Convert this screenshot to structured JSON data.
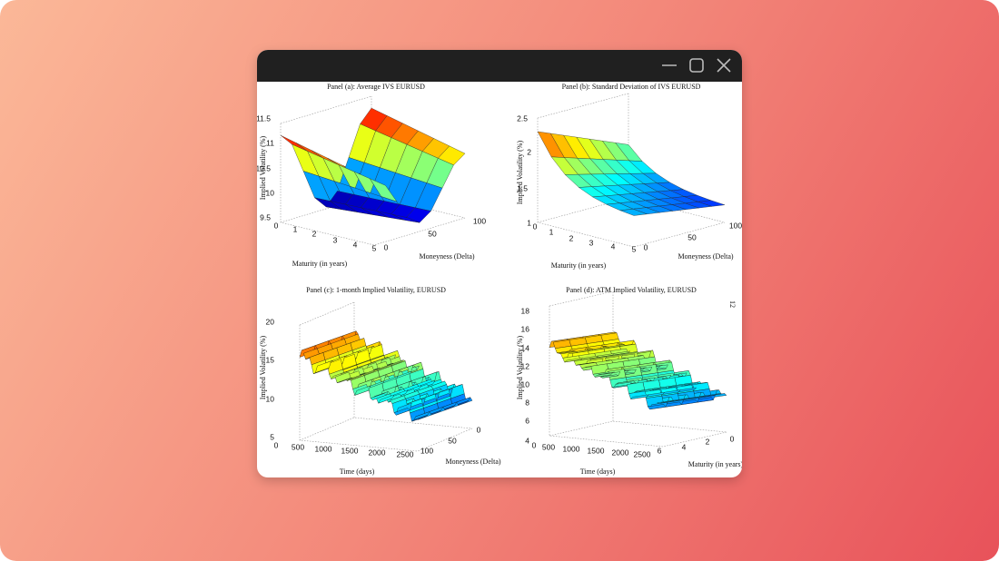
{
  "window": {
    "page_number": 12
  },
  "panels": [
    {
      "title": "Panel (a): Average IVS EURUSD",
      "z_label": "Implied Volatility (%)",
      "x_label": "Maturity (in years)",
      "y_label": "Moneyness (Delta)",
      "z_ticks": [
        11.5,
        11,
        10.5,
        10,
        9.5
      ],
      "x_ticks": [
        0,
        1,
        2,
        3,
        4,
        5
      ],
      "y_ticks": [
        0,
        50,
        100
      ]
    },
    {
      "title": "Panel (b): Standard Deviation of IVS EURUSD",
      "z_label": "Implied Volatility (%)",
      "x_label": "Maturity (in years)",
      "y_label": "Moneyness (Delta)",
      "z_ticks": [
        2.5,
        2,
        1.5,
        1
      ],
      "x_ticks": [
        0,
        1,
        2,
        3,
        4,
        5
      ],
      "y_ticks": [
        0,
        50,
        100
      ]
    },
    {
      "title": "Panel (c): 1-month Implied Volatility, EURUSD",
      "z_label": "Implied Volatility (%)",
      "x_label": "Time (days)",
      "y_label": "Moneyness (Delta)",
      "z_ticks": [
        20,
        15,
        10,
        5
      ],
      "x_ticks": [
        0,
        500,
        1000,
        1500,
        2000,
        2500
      ],
      "y_ticks": [
        0,
        50,
        100
      ]
    },
    {
      "title": "Panel (d): ATM Implied Volatility, EURUSD",
      "z_label": "Implied Volatility (%)",
      "x_label": "Time (days)",
      "y_label": "Maturity (in years)",
      "z_ticks": [
        18,
        16,
        14,
        12,
        10,
        8,
        6,
        4
      ],
      "x_ticks": [
        0,
        500,
        1000,
        1500,
        2000,
        2500
      ],
      "y_ticks": [
        6,
        4,
        2,
        0
      ]
    }
  ]
}
